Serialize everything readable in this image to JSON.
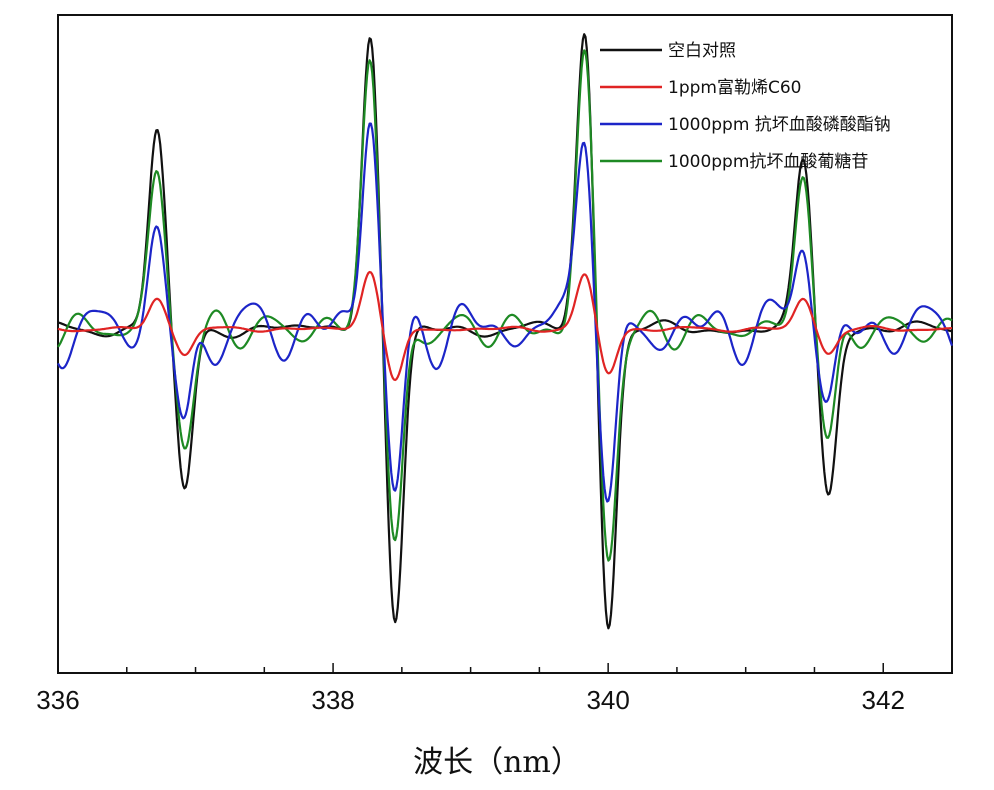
{
  "chart_data": {
    "type": "line",
    "title": "",
    "xlabel": "波长（nm）",
    "ylabel": "",
    "xlim": [
      336,
      342.5
    ],
    "ylim": [
      -1.15,
      1.05
    ],
    "x_ticks": [
      336,
      338,
      340,
      342
    ],
    "x_tick_labels": [
      "336",
      "338",
      "340",
      "342"
    ],
    "y_axis_visible": false,
    "grid": false,
    "legend_position": "top-right",
    "peaks": {
      "x": [
        336.72,
        336.92,
        338.27,
        338.45,
        339.83,
        340.0,
        341.42,
        341.6
      ],
      "series_amplitudes": [
        [
          0.67,
          -0.55,
          1.0,
          -1.0,
          1.0,
          -1.0,
          0.56,
          -0.55
        ],
        [
          0.1,
          -0.08,
          0.2,
          -0.18,
          0.18,
          -0.15,
          0.1,
          -0.08
        ],
        [
          0.34,
          -0.38,
          0.78,
          -0.6,
          0.75,
          -0.65,
          0.34,
          -0.28
        ],
        [
          0.52,
          -0.38,
          0.92,
          -0.75,
          0.91,
          -0.77,
          0.53,
          -0.4
        ]
      ]
    },
    "series": [
      {
        "name": "空白对照",
        "color": "#111111"
      },
      {
        "name": "1ppm富勒烯C60",
        "color": "#e02424"
      },
      {
        "name": "1000ppm 抗坏血酸磷酸酯钠",
        "color": "#1c25c8"
      },
      {
        "name": "1000ppm抗坏血酸葡糖苷",
        "color": "#1e8a24"
      }
    ]
  }
}
